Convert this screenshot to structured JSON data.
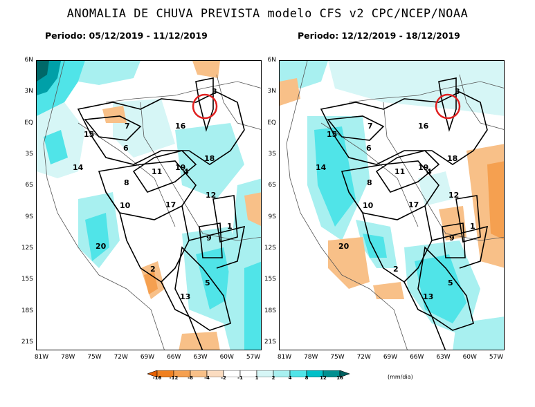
{
  "title": "ANOMALIA DE CHUVA PREVISTA modelo CFS v2 CPC/NCEP/NOAA",
  "periods": [
    "Periodo: 05/12/2019 - 11/12/2019",
    "Periodo: 12/12/2019 - 18/12/2019"
  ],
  "lat_ticks": [
    "6N",
    "3N",
    "EQ",
    "3S",
    "6S",
    "9S",
    "12S",
    "15S",
    "18S",
    "21S"
  ],
  "lon_ticks": [
    "81W",
    "78W",
    "75W",
    "72W",
    "69W",
    "66W",
    "63W",
    "60W",
    "57W"
  ],
  "basins": [
    "1",
    "2",
    "3",
    "4",
    "5",
    "6",
    "7",
    "8",
    "8",
    "9",
    "10",
    "11",
    "12",
    "13",
    "14",
    "15",
    "16",
    "17",
    "18",
    "19",
    "20"
  ],
  "colorbar": {
    "labels": [
      "-16",
      "-12",
      "-8",
      "-4",
      "-2",
      "-1",
      "1",
      "2",
      "4",
      "8",
      "12",
      "16"
    ],
    "unit": "(mm/dia)",
    "colors": [
      "#e65f00",
      "#f08020",
      "#f5a050",
      "#f8c088",
      "#fbdcc0",
      "#ffffff",
      "#ffffff",
      "#d6f6f6",
      "#a8f0f0",
      "#50e4e8",
      "#00c0c8",
      "#009090",
      "#006060"
    ]
  },
  "marker": {
    "label": "highlight-circle",
    "color": "#e02020"
  }
}
